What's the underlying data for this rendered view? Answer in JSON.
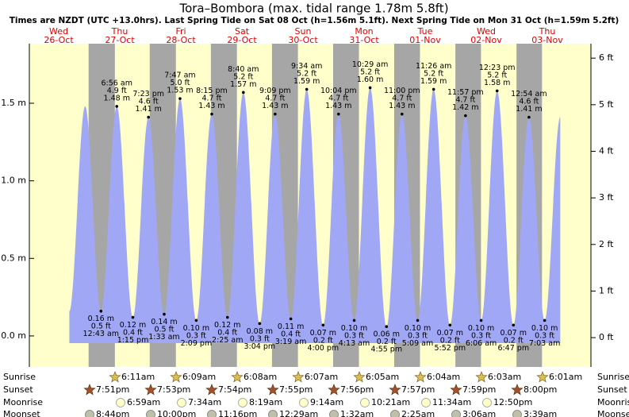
{
  "chart_data": {
    "type": "area",
    "title": "Tora–Bombora (max. tidal range 1.78m 5.8ft)",
    "subtitle": "Times are NZDT (UTC +13.0hrs). Last Spring Tide on Sat 08 Oct (h=1.56m 5.1ft). Next Spring Tide on Mon 31 Oct (h=1.59m 5.2ft)",
    "color": "#a0a8f5",
    "day_color": "#ffffcc",
    "night_color": "#a6a6a6",
    "ylim": [
      -0.2,
      1.884
    ],
    "yticks": [
      {
        "value": 0,
        "label": "0.0 m"
      },
      {
        "value": 0.5,
        "label": "0.5 m"
      },
      {
        "value": 1,
        "label": "1.0 m"
      },
      {
        "value": 1.5,
        "label": "1.5 m"
      }
    ],
    "y2lim": [
      -0.63,
      6.31
    ],
    "y2ticks": [
      {
        "value": 0,
        "label": "0 ft"
      },
      {
        "value": 1,
        "label": "1 ft"
      },
      {
        "value": 2,
        "label": "2 ft"
      },
      {
        "value": 3,
        "label": "3 ft"
      },
      {
        "value": 4,
        "label": "4 ft"
      },
      {
        "value": 5,
        "label": "5 ft"
      },
      {
        "value": 6,
        "label": "6 ft"
      }
    ],
    "days": [
      {
        "weekday": "Wed",
        "date": "26-Oct"
      },
      {
        "weekday": "Thu",
        "date": "27-Oct",
        "tides": {
          "times": [
            "12:43 am",
            "6:56 am",
            "1:15 pm",
            "7:23 pm"
          ],
          "values": [
            0.16,
            1.48,
            0.12,
            1.41
          ],
          "value_labels": [
            "0.16 m",
            "1.48 m",
            "0.12 m",
            "1.41 m"
          ],
          "ft_labels": [
            "0.5 ft",
            "4.9 ft",
            "0.4 ft",
            "4.6 ft"
          ]
        }
      },
      {
        "weekday": "Fri",
        "date": "28-Oct",
        "tides": {
          "times": [
            "1:33 am",
            "7:47 am",
            "2:09 pm",
            "8:15 pm"
          ],
          "values": [
            0.14,
            1.53,
            0.1,
            1.43
          ],
          "value_labels": [
            "0.14 m",
            "1.53 m",
            "0.10 m",
            "1.43 m"
          ],
          "ft_labels": [
            "0.5 ft",
            "5.0 ft",
            "0.3 ft",
            "4.7 ft"
          ]
        }
      },
      {
        "weekday": "Sat",
        "date": "29-Oct",
        "tides": {
          "times": [
            "2:25 am",
            "8:40 am",
            "3:04 pm",
            "9:09 pm"
          ],
          "values": [
            0.12,
            1.57,
            0.08,
            1.43
          ],
          "value_labels": [
            "0.12 m",
            "1.57 m",
            "0.08 m",
            "1.43 m"
          ],
          "ft_labels": [
            "0.4 ft",
            "5.2 ft",
            "0.3 ft",
            "4.7 ft"
          ]
        }
      },
      {
        "weekday": "Sun",
        "date": "30-Oct",
        "tides": {
          "times": [
            "3:19 am",
            "9:34 am",
            "4:00 pm",
            "10:04 pm"
          ],
          "values": [
            0.11,
            1.59,
            0.07,
            1.43
          ],
          "value_labels": [
            "0.11 m",
            "1.59 m",
            "0.07 m",
            "1.43 m"
          ],
          "ft_labels": [
            "0.4 ft",
            "5.2 ft",
            "0.2 ft",
            "4.7 ft"
          ]
        }
      },
      {
        "weekday": "Mon",
        "date": "31-Oct",
        "tides": {
          "times": [
            "4:13 am",
            "10:29 am",
            "4:55 pm",
            "11:00 pm"
          ],
          "values": [
            0.1,
            1.6,
            0.06,
            1.43
          ],
          "value_labels": [
            "0.10 m",
            "1.60 m",
            "0.06 m",
            "1.43 m"
          ],
          "ft_labels": [
            "0.3 ft",
            "5.2 ft",
            "0.2 ft",
            "4.7 ft"
          ]
        }
      },
      {
        "weekday": "Tue",
        "date": "01-Nov",
        "tides": {
          "times": [
            "5:09 am",
            "11:26 am",
            "5:52 pm",
            "11:57 pm"
          ],
          "values": [
            0.1,
            1.59,
            0.07,
            1.42
          ],
          "value_labels": [
            "0.10 m",
            "1.59 m",
            "0.07 m",
            "1.42 m"
          ],
          "ft_labels": [
            "0.3 ft",
            "5.2 ft",
            "0.2 ft",
            "4.7 ft"
          ]
        }
      },
      {
        "weekday": "Wed",
        "date": "02-Nov",
        "tides": {
          "times": [
            "6:06 am",
            "12:23 pm",
            "6:47 pm"
          ],
          "values": [
            0.1,
            1.58,
            0.07
          ],
          "value_labels": [
            "0.10 m",
            "1.58 m",
            "0.07 m"
          ],
          "ft_labels": [
            "0.3 ft",
            "5.2 ft",
            "0.2 ft"
          ]
        }
      },
      {
        "weekday": "Thu",
        "date": "03-Nov",
        "tides": {
          "times": [
            "12:54 am",
            "7:03 am"
          ],
          "values": [
            1.41,
            0.1
          ],
          "value_labels": [
            "1.41 m",
            "0.10 m"
          ],
          "ft_labels": [
            "4.6 ft",
            "0.3 ft"
          ]
        }
      }
    ],
    "almanac": [
      {
        "label": "Sunrise",
        "times": [
          "6:11am",
          "6:09am",
          "6:08am",
          "6:07am",
          "6:05am",
          "6:04am",
          "6:03am",
          "6:01am"
        ]
      },
      {
        "label": "Sunset",
        "times": [
          "7:51pm",
          "7:53pm",
          "7:54pm",
          "7:55pm",
          "7:56pm",
          "7:57pm",
          "7:59pm",
          "8:00pm"
        ]
      },
      {
        "label": "Moonrise",
        "times": [
          "6:59am",
          "7:34am",
          "8:19am",
          "9:14am",
          "10:21am",
          "11:34am",
          "12:50pm"
        ]
      },
      {
        "label": "Moonset",
        "times": [
          "8:44pm",
          "10:00pm",
          "11:16pm",
          "12:29am",
          "1:32am",
          "2:25am",
          "3:06am",
          "3:39am"
        ]
      }
    ]
  }
}
